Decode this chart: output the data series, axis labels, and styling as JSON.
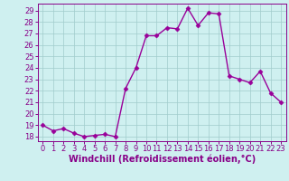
{
  "x": [
    0,
    1,
    2,
    3,
    4,
    5,
    6,
    7,
    8,
    9,
    10,
    11,
    12,
    13,
    14,
    15,
    16,
    17,
    18,
    19,
    20,
    21,
    22,
    23
  ],
  "y": [
    19.0,
    18.5,
    18.7,
    18.3,
    18.0,
    18.1,
    18.2,
    18.0,
    22.2,
    24.0,
    26.8,
    26.8,
    27.5,
    27.4,
    29.2,
    27.7,
    28.8,
    28.7,
    23.3,
    23.0,
    22.7,
    23.7,
    21.8,
    21.0
  ],
  "line_color": "#990099",
  "marker": "D",
  "markersize": 2.5,
  "linewidth": 1.0,
  "bg_color": "#cff0f0",
  "grid_color": "#a0cccc",
  "xlabel": "Windchill (Refroidissement éolien,°C)",
  "xlabel_fontsize": 7,
  "yticks": [
    18,
    19,
    20,
    21,
    22,
    23,
    24,
    25,
    26,
    27,
    28,
    29
  ],
  "xticks": [
    0,
    1,
    2,
    3,
    4,
    5,
    6,
    7,
    8,
    9,
    10,
    11,
    12,
    13,
    14,
    15,
    16,
    17,
    18,
    19,
    20,
    21,
    22,
    23
  ],
  "ylim": [
    17.6,
    29.6
  ],
  "xlim": [
    -0.5,
    23.5
  ],
  "tick_fontsize": 6,
  "axis_color": "#880088",
  "spine_color": "#880088"
}
